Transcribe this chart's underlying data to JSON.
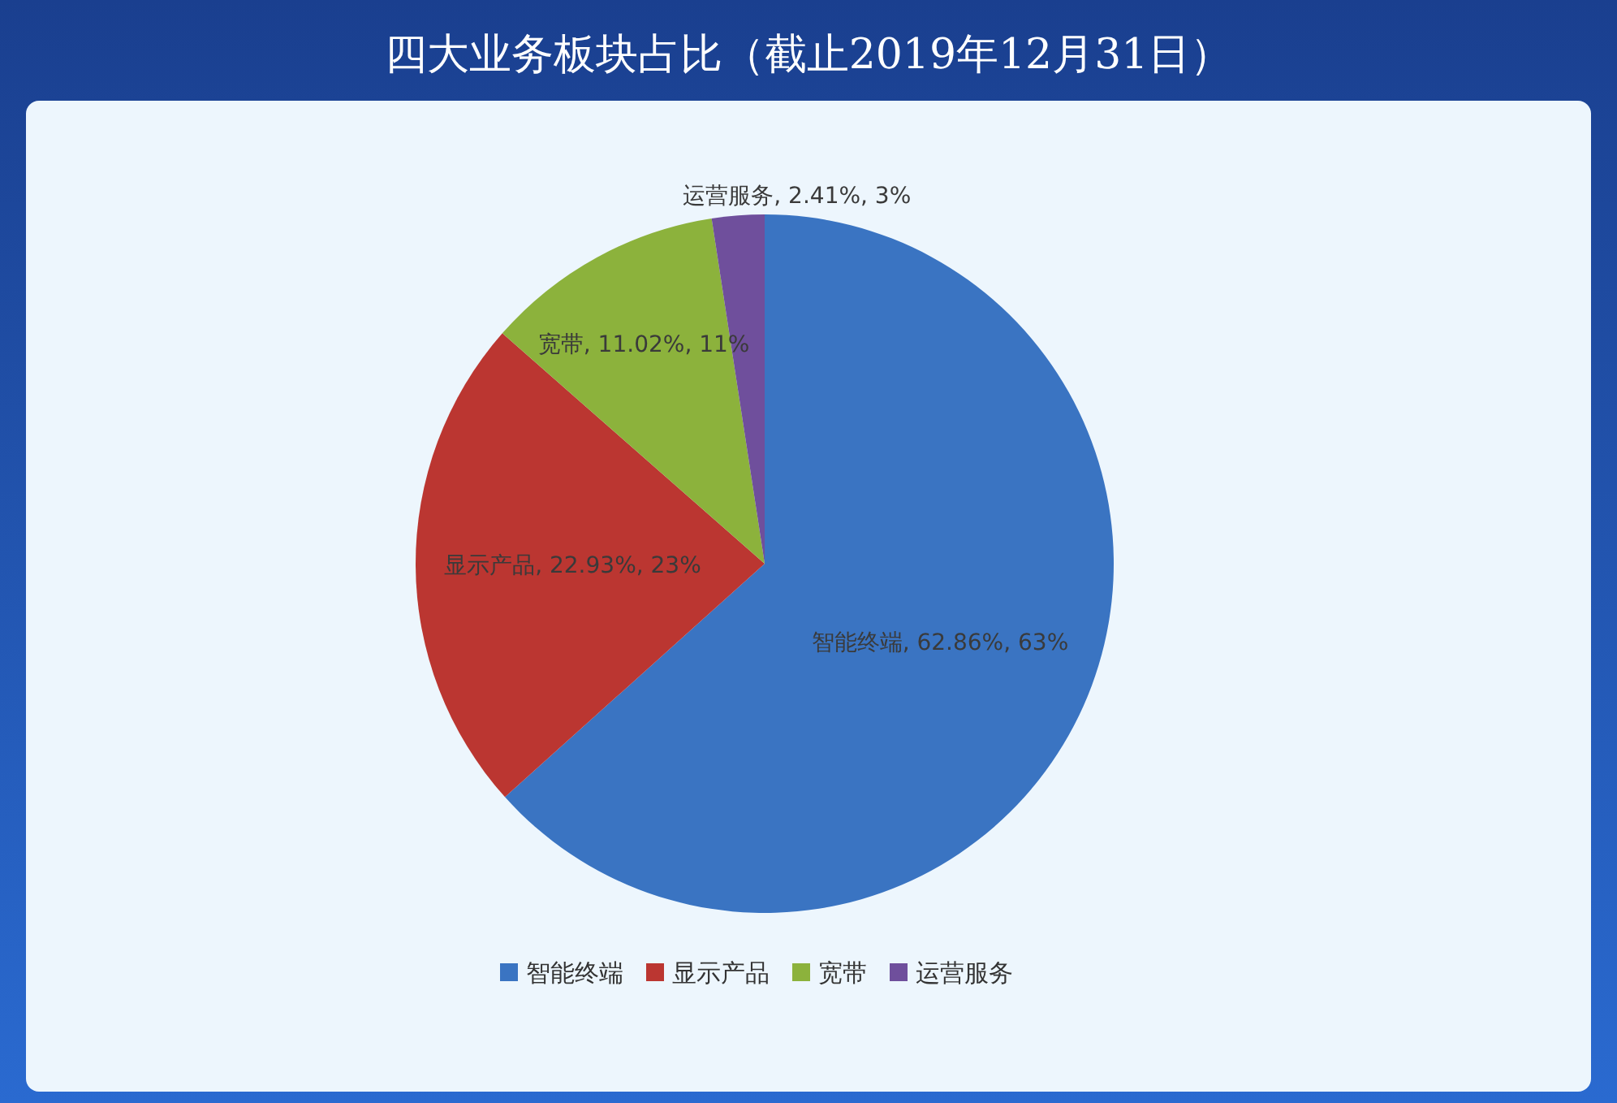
{
  "chart_data": {
    "type": "pie",
    "title": "四大业务板块占比（截止2019年12月31日）",
    "categories": [
      "智能终端",
      "显示产品",
      "宽带",
      "运营服务"
    ],
    "values": [
      62.86,
      22.93,
      11.02,
      2.41
    ],
    "value_labels": [
      "智能终端, 62.86%, 63%",
      "显示产品, 22.93%, 23%",
      "宽带, 11.02%, 11%",
      "运营服务, 2.41%, 3%"
    ],
    "colors": [
      "#3a74c2",
      "#bb3631",
      "#8cb23c",
      "#6f4f9c"
    ],
    "legend": "bottom"
  }
}
